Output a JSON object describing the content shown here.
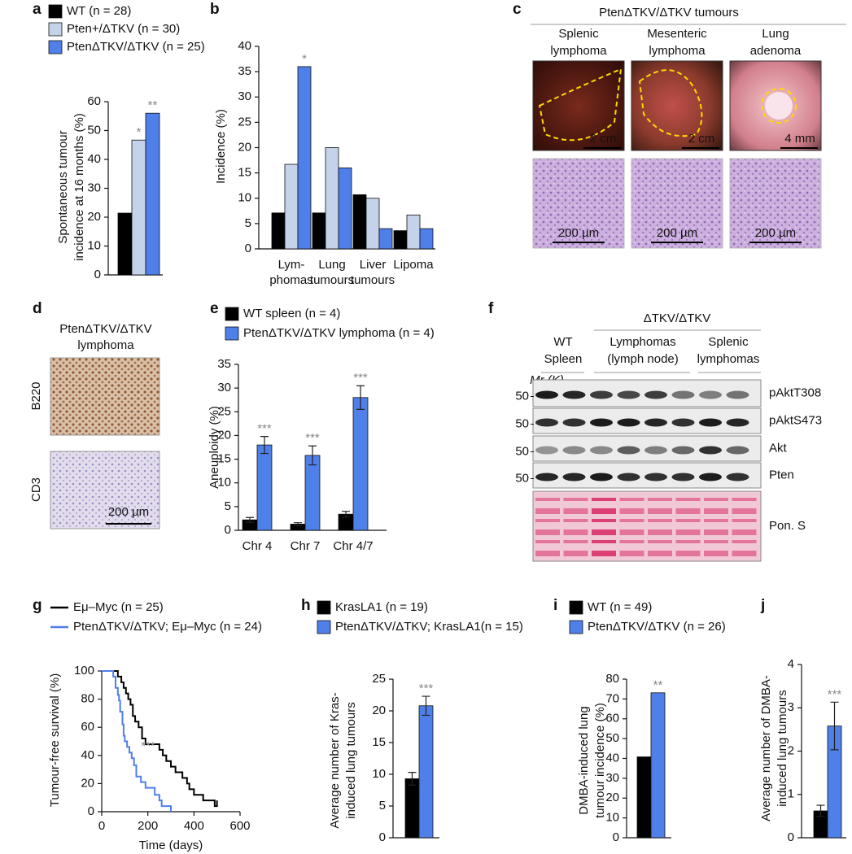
{
  "chart_data": [
    {
      "panel": "a",
      "type": "bar",
      "categories": [
        null
      ],
      "series": [
        {
          "name": "WT (n = 28)",
          "color": "#000000",
          "values": [
            21.4
          ]
        },
        {
          "name": "Pten+/ΔTKV (n = 30)",
          "color": "#c5d3ea",
          "values": [
            46.7
          ],
          "significance": [
            "*"
          ]
        },
        {
          "name": "PtenΔTKV/ΔTKV (n = 25)",
          "color": "#4f7fe8",
          "values": [
            56
          ],
          "significance": [
            "**"
          ]
        }
      ],
      "ylabel": [
        "Spontaneous tumour",
        "incidence at 16 months (%)"
      ],
      "ylim": [
        0,
        60
      ],
      "yticks": [
        0,
        10,
        20,
        30,
        40,
        50,
        60
      ]
    },
    {
      "panel": "b",
      "type": "bar",
      "categories": [
        [
          "Lym-",
          "phomas"
        ],
        [
          "Lung",
          "tumours"
        ],
        [
          "Liver",
          "tumours"
        ],
        [
          "Lipoma"
        ]
      ],
      "series": [
        {
          "color": "#000000",
          "values": [
            7.1,
            7.1,
            10.7,
            3.6
          ]
        },
        {
          "color": "#c5d3ea",
          "values": [
            16.7,
            20,
            10,
            6.7
          ]
        },
        {
          "color": "#4f7fe8",
          "values": [
            36,
            16,
            4,
            4
          ],
          "significance": [
            "*",
            null,
            null,
            null
          ]
        }
      ],
      "ylabel": [
        "Incidence (%)"
      ],
      "ylim": [
        0,
        40
      ],
      "yticks": [
        0,
        5,
        10,
        15,
        20,
        25,
        30,
        35,
        40
      ]
    },
    {
      "panel": "e",
      "type": "bar",
      "categories": [
        [
          "Chr 4"
        ],
        [
          "Chr 7"
        ],
        [
          "Chr 4/7"
        ]
      ],
      "series": [
        {
          "name": "WT spleen (n = 4)",
          "color": "#000000",
          "values": [
            2.2,
            1.3,
            3.4
          ],
          "errors": [
            0.5,
            0.3,
            0.6
          ]
        },
        {
          "name": "PtenΔTKV/ΔTKV lymphoma (n = 4)",
          "color": "#4f7fe8",
          "values": [
            18,
            15.8,
            28
          ],
          "errors": [
            1.8,
            2,
            2.5
          ],
          "significance": [
            "***",
            "***",
            "***"
          ]
        }
      ],
      "ylabel": [
        "Aneuploidy (%)"
      ],
      "ylim": [
        0,
        35
      ],
      "yticks": [
        0,
        5,
        10,
        15,
        20,
        25,
        30,
        35
      ]
    },
    {
      "panel": "g",
      "type": "line",
      "step": true,
      "series": [
        {
          "name": "Eμ–Myc (n = 25)",
          "color": "#000000",
          "x": [
            0,
            70,
            85,
            95,
            105,
            115,
            125,
            135,
            145,
            160,
            175,
            190,
            250,
            265,
            280,
            300,
            320,
            350,
            370,
            380,
            400,
            440,
            470,
            490,
            500
          ],
          "values": [
            100,
            96,
            92,
            88,
            84,
            80,
            76,
            68,
            64,
            60,
            52,
            48,
            44,
            40,
            36,
            32,
            28,
            24,
            20,
            16,
            12,
            8,
            8,
            4,
            8
          ]
        },
        {
          "name": "PtenΔTKV/ΔTKV; Eμ–Myc (n = 24)",
          "color": "#4f7fe8",
          "x": [
            0,
            50,
            60,
            70,
            75,
            80,
            90,
            95,
            100,
            110,
            120,
            130,
            140,
            150,
            170,
            190,
            210,
            230,
            250,
            260,
            280,
            300
          ],
          "values": [
            100,
            96,
            88,
            83,
            79,
            71,
            62,
            54,
            50,
            46,
            42,
            38,
            33,
            25,
            21,
            17,
            17,
            12,
            8,
            4,
            4,
            0
          ]
        }
      ],
      "annotation": "***",
      "xlabel": [
        "Time (days)"
      ],
      "ylabel": [
        "Tumour-free survival (%)"
      ],
      "xlim": [
        0,
        600
      ],
      "xticks": [
        0,
        200,
        400,
        600
      ],
      "ylim": [
        0,
        100
      ],
      "yticks": [
        0,
        20,
        40,
        60,
        80,
        100
      ]
    },
    {
      "panel": "h",
      "type": "bar",
      "categories": [
        null
      ],
      "series": [
        {
          "name": "KrasLA1 (n = 19)",
          "color": "#000000",
          "values": [
            9.3
          ],
          "errors": [
            1.0
          ]
        },
        {
          "name": "PtenΔTKV/ΔTKV; KrasLA1(n = 15)",
          "color": "#4f7fe8",
          "values": [
            20.8
          ],
          "errors": [
            1.5
          ],
          "significance": [
            "***"
          ]
        }
      ],
      "ylabel": [
        "Average number of Kras-",
        "induced lung tumours"
      ],
      "ylim": [
        0,
        25
      ],
      "yticks": [
        0,
        5,
        10,
        15,
        20,
        25
      ]
    },
    {
      "panel": "i",
      "type": "bar",
      "categories": [
        null
      ],
      "series": [
        {
          "name": "WT (n = 49)",
          "color": "#000000",
          "values": [
            40.8
          ]
        },
        {
          "name": "PtenΔTKV/ΔTKV (n = 26)",
          "color": "#4f7fe8",
          "values": [
            73.1
          ],
          "significance": [
            "**"
          ]
        }
      ],
      "ylabel": [
        "DMBA-induced lung",
        "tumour incidence (%)"
      ],
      "ylim": [
        0,
        80
      ],
      "yticks": [
        0,
        10,
        20,
        30,
        40,
        50,
        60,
        70,
        80
      ]
    },
    {
      "panel": "j",
      "type": "bar",
      "categories": [
        null
      ],
      "series": [
        {
          "color": "#000000",
          "values": [
            0.62
          ],
          "errors": [
            0.13
          ]
        },
        {
          "color": "#4f7fe8",
          "values": [
            2.58
          ],
          "errors": [
            0.55
          ],
          "significance": [
            "***"
          ]
        }
      ],
      "ylabel": [
        "Average number of DMBA-",
        "induced lung tumours"
      ],
      "ylim": [
        0,
        4
      ],
      "yticks": [
        0,
        1,
        2,
        3,
        4
      ]
    }
  ],
  "image_panels": {
    "c": {
      "panel": "c",
      "title": "PtenΔTKV/ΔTKV tumours",
      "columns": [
        {
          "label": [
            "Splenic",
            "lymphoma"
          ],
          "scale_top": "2 cm",
          "scale_bottom": "200 µm"
        },
        {
          "label": [
            "Mesenteric",
            "lymphoma"
          ],
          "scale_top": "2 cm",
          "scale_bottom": "200 µm"
        },
        {
          "label": [
            "Lung",
            "adenoma"
          ],
          "scale_top": "4 mm",
          "scale_bottom": "200 µm"
        }
      ]
    },
    "d": {
      "panel": "d",
      "title": [
        "PtenΔTKV/ΔTKV",
        "lymphoma"
      ],
      "rows": [
        "B220",
        "CD3"
      ],
      "scale": "200 µm"
    },
    "f": {
      "panel": "f",
      "header": "ΔTKV/ΔTKV",
      "groups": [
        [
          "WT",
          "Spleen"
        ],
        [
          "Lymphomas",
          "(lymph node)"
        ],
        [
          "Splenic",
          "lymphomas"
        ]
      ],
      "mr_label": "Mr (K)",
      "bands": [
        {
          "label": "pAktT308",
          "marker": 50
        },
        {
          "label": "pAktS473",
          "marker": 50
        },
        {
          "label": "Akt",
          "marker": 50
        },
        {
          "label": "Pten",
          "marker": 50
        },
        {
          "label": "Pon. S"
        }
      ]
    }
  }
}
